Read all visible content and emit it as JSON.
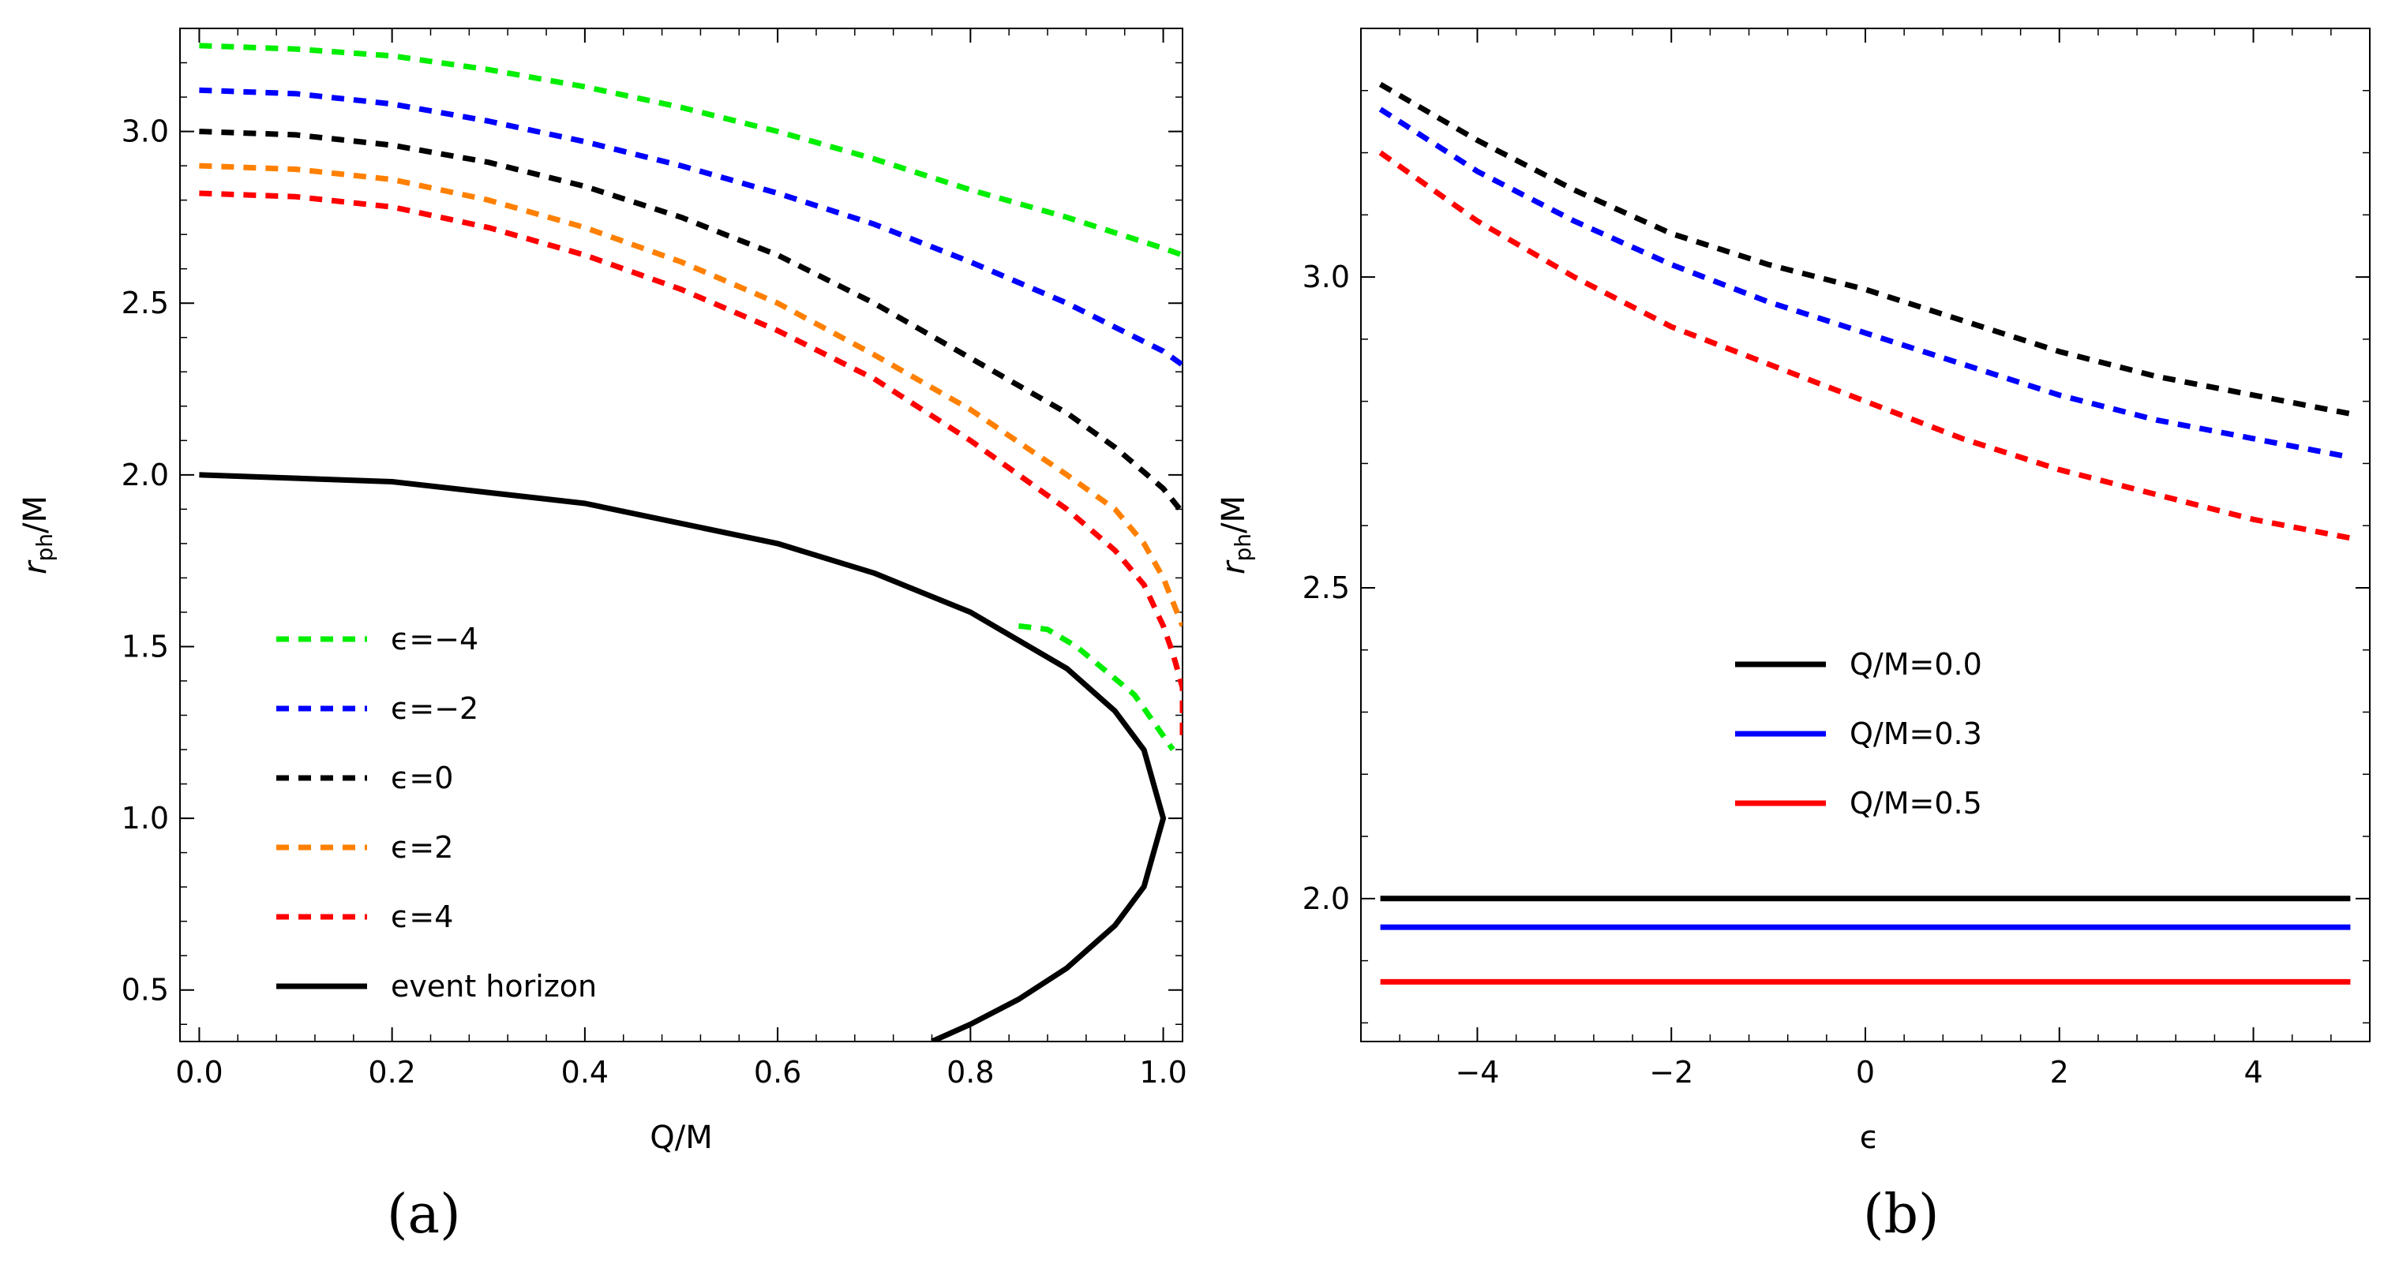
{
  "figure": {
    "panel_labels": [
      "(a)",
      "(b)"
    ]
  },
  "chart_data": [
    {
      "type": "line",
      "panel": "(a)",
      "xlabel": "Q/M",
      "ylabel": "r_ph/M",
      "xlim": [
        -0.02,
        1.02
      ],
      "ylim": [
        0.35,
        3.3
      ],
      "xticks": [
        0.0,
        0.2,
        0.4,
        0.6,
        0.8,
        1.0
      ],
      "xtick_labels": [
        "0.0",
        "0.2",
        "0.4",
        "0.6",
        "0.8",
        "1.0"
      ],
      "yticks": [
        0.5,
        1.0,
        1.5,
        2.0,
        2.5,
        3.0
      ],
      "ytick_labels": [
        "0.5",
        "1.0",
        "1.5",
        "2.0",
        "2.5",
        "3.0"
      ],
      "grid": false,
      "legend_position": "lower-left",
      "series": [
        {
          "name": "ϵ=−4",
          "color": "#00ee00",
          "style": "dashed",
          "x": [
            0.0,
            0.1,
            0.2,
            0.3,
            0.4,
            0.5,
            0.6,
            0.7,
            0.8,
            0.9,
            1.0,
            1.02
          ],
          "y": [
            3.25,
            3.24,
            3.22,
            3.18,
            3.13,
            3.07,
            3.0,
            2.92,
            2.83,
            2.75,
            2.66,
            2.64
          ]
        },
        {
          "name": "ϵ=−4",
          "color": "#00ee00",
          "style": "dashed",
          "segment": "inner",
          "x": [
            0.85,
            0.88,
            0.91,
            0.94,
            0.97,
            0.99,
            1.01
          ],
          "y": [
            1.56,
            1.55,
            1.5,
            1.43,
            1.36,
            1.28,
            1.2
          ]
        },
        {
          "name": "ϵ=−2",
          "color": "#0000ff",
          "style": "dashed",
          "x": [
            0.0,
            0.1,
            0.2,
            0.3,
            0.4,
            0.5,
            0.6,
            0.7,
            0.8,
            0.9,
            0.95,
            1.0,
            1.02
          ],
          "y": [
            3.12,
            3.11,
            3.08,
            3.03,
            2.97,
            2.9,
            2.82,
            2.73,
            2.62,
            2.5,
            2.43,
            2.36,
            2.32
          ]
        },
        {
          "name": "ϵ=0",
          "color": "#000000",
          "style": "dashed",
          "x": [
            0.0,
            0.1,
            0.2,
            0.3,
            0.4,
            0.5,
            0.6,
            0.7,
            0.8,
            0.9,
            0.95,
            1.0,
            1.02
          ],
          "y": [
            3.0,
            2.99,
            2.96,
            2.91,
            2.84,
            2.75,
            2.64,
            2.5,
            2.34,
            2.18,
            2.08,
            1.96,
            1.89
          ]
        },
        {
          "name": "ϵ=2",
          "color": "#ff8000",
          "style": "dashed",
          "x": [
            0.0,
            0.1,
            0.2,
            0.3,
            0.4,
            0.5,
            0.6,
            0.7,
            0.8,
            0.9,
            0.95,
            0.98,
            1.0,
            1.02
          ],
          "y": [
            2.9,
            2.89,
            2.86,
            2.8,
            2.72,
            2.62,
            2.5,
            2.35,
            2.19,
            2.0,
            1.9,
            1.8,
            1.7,
            1.56
          ]
        },
        {
          "name": "ϵ=4",
          "color": "#ff0000",
          "style": "dashed",
          "x": [
            0.0,
            0.1,
            0.2,
            0.3,
            0.4,
            0.5,
            0.6,
            0.7,
            0.8,
            0.9,
            0.95,
            0.98,
            1.0,
            1.01,
            1.02,
            1.02
          ],
          "y": [
            2.82,
            2.81,
            2.78,
            2.72,
            2.64,
            2.54,
            2.42,
            2.28,
            2.1,
            1.9,
            1.78,
            1.68,
            1.56,
            1.48,
            1.38,
            1.22
          ]
        },
        {
          "name": "event horizon",
          "color": "#000000",
          "style": "solid",
          "x": [
            0.0,
            0.2,
            0.4,
            0.6,
            0.7,
            0.8,
            0.9,
            0.95,
            0.98,
            1.0,
            0.98,
            0.95,
            0.9,
            0.85,
            0.8,
            0.76
          ],
          "y": [
            2.0,
            1.98,
            1.917,
            1.8,
            1.714,
            1.6,
            1.436,
            1.312,
            1.199,
            1.0,
            0.801,
            0.688,
            0.564,
            0.473,
            0.4,
            0.35
          ]
        }
      ]
    },
    {
      "type": "line",
      "panel": "(b)",
      "xlabel": "ϵ",
      "ylabel": "r_ph/M",
      "xlim": [
        -5.2,
        5.2
      ],
      "ylim": [
        1.77,
        3.4
      ],
      "xticks": [
        -4,
        -2,
        0,
        2,
        4
      ],
      "xtick_labels": [
        "−4",
        "−2",
        "0",
        "2",
        "4"
      ],
      "yticks": [
        2.0,
        2.5,
        3.0
      ],
      "ytick_labels": [
        "2.0",
        "2.5",
        "3.0"
      ],
      "grid": false,
      "legend_position": "center",
      "series": [
        {
          "name": "Q/M=0.0",
          "color": "#000000",
          "style": "solid",
          "x": [
            -5,
            5
          ],
          "y": [
            2.0,
            2.0
          ]
        },
        {
          "name": "Q/M=0.3",
          "color": "#0000ff",
          "style": "solid",
          "x": [
            -5,
            5
          ],
          "y": [
            1.954,
            1.954
          ]
        },
        {
          "name": "Q/M=0.5",
          "color": "#ff0000",
          "style": "solid",
          "x": [
            -5,
            5
          ],
          "y": [
            1.866,
            1.866
          ]
        },
        {
          "name": "Q/M=0.0",
          "color": "#000000",
          "style": "dashed",
          "photon_sphere": true,
          "x": [
            -5,
            -4,
            -3,
            -2,
            -1,
            0,
            1,
            2,
            3,
            4,
            5
          ],
          "y": [
            3.31,
            3.22,
            3.14,
            3.07,
            3.02,
            2.98,
            2.93,
            2.88,
            2.84,
            2.81,
            2.78
          ]
        },
        {
          "name": "Q/M=0.3",
          "color": "#0000ff",
          "style": "dashed",
          "photon_sphere": true,
          "x": [
            -5,
            -4,
            -3,
            -2,
            -1,
            0,
            1,
            2,
            3,
            4,
            5
          ],
          "y": [
            3.27,
            3.17,
            3.09,
            3.02,
            2.96,
            2.91,
            2.86,
            2.81,
            2.77,
            2.74,
            2.71
          ]
        },
        {
          "name": "Q/M=0.5",
          "color": "#ff0000",
          "style": "dashed",
          "photon_sphere": true,
          "x": [
            -5,
            -4,
            -3,
            -2,
            -1,
            0,
            1,
            2,
            3,
            4,
            5
          ],
          "y": [
            3.2,
            3.09,
            3.0,
            2.92,
            2.86,
            2.8,
            2.74,
            2.69,
            2.65,
            2.61,
            2.58
          ]
        }
      ]
    }
  ]
}
